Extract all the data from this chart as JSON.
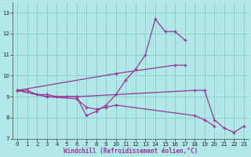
{
  "xlabel": "Windchill (Refroidissement éolien,°C)",
  "background_color": "#b0e8e8",
  "grid_color": "#88cccc",
  "line_color": "#993399",
  "xlim": [
    -0.5,
    23.5
  ],
  "ylim": [
    7,
    13.5
  ],
  "yticks": [
    7,
    8,
    9,
    10,
    11,
    12,
    13
  ],
  "xticks": [
    0,
    1,
    2,
    3,
    4,
    5,
    6,
    7,
    8,
    9,
    10,
    11,
    12,
    13,
    14,
    15,
    16,
    17,
    18,
    19,
    20,
    21,
    22,
    23
  ],
  "series": [
    [
      [
        0,
        9.3
      ],
      [
        1,
        9.3
      ],
      [
        2,
        9.1
      ],
      [
        3,
        9.1
      ],
      [
        4,
        9.0
      ],
      [
        5,
        9.0
      ],
      [
        6,
        9.0
      ],
      [
        7,
        8.1
      ],
      [
        8,
        8.3
      ],
      [
        9,
        8.6
      ],
      [
        10,
        9.1
      ],
      [
        11,
        9.8
      ],
      [
        12,
        10.3
      ],
      [
        13,
        11.0
      ],
      [
        14,
        12.7
      ],
      [
        15,
        12.1
      ],
      [
        16,
        12.1
      ],
      [
        17,
        11.7
      ]
    ],
    [
      [
        0,
        9.3
      ],
      [
        10,
        10.1
      ],
      [
        16,
        10.5
      ],
      [
        17,
        10.5
      ]
    ],
    [
      [
        0,
        9.3
      ],
      [
        3,
        9.0
      ],
      [
        6,
        8.9
      ],
      [
        7,
        8.5
      ],
      [
        8,
        8.4
      ],
      [
        9,
        8.5
      ],
      [
        10,
        8.6
      ],
      [
        18,
        8.1
      ],
      [
        19,
        7.9
      ],
      [
        20,
        7.6
      ]
    ],
    [
      [
        0,
        9.3
      ],
      [
        3,
        9.0
      ],
      [
        6,
        9.0
      ],
      [
        18,
        9.3
      ],
      [
        19,
        9.3
      ],
      [
        20,
        7.9
      ],
      [
        21,
        7.5
      ],
      [
        22,
        7.3
      ],
      [
        23,
        7.6
      ]
    ]
  ]
}
